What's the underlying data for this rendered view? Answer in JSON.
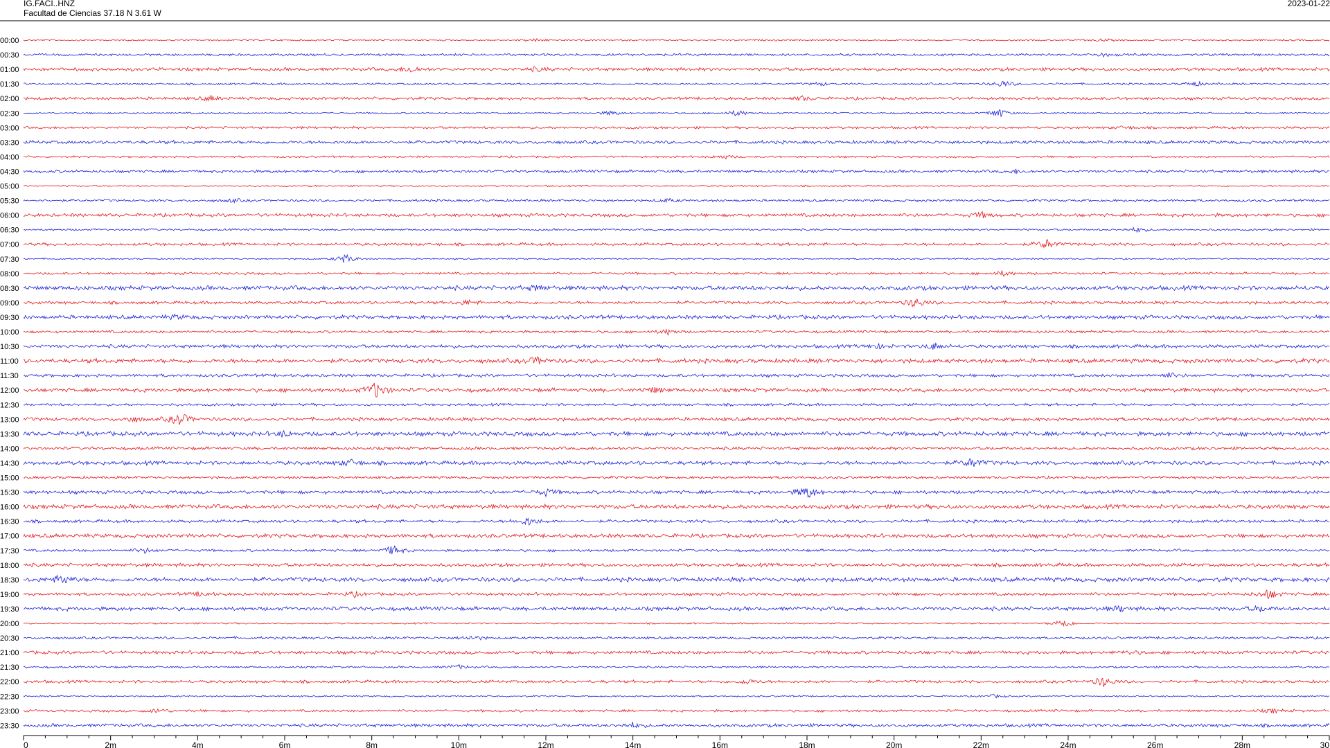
{
  "header": {
    "station": "IG.FACI..HNZ",
    "location": "Facultad de Ciencias  37.18 N 3.61 W",
    "date": "2023-01-22"
  },
  "colors": {
    "trace_a": "#e3161b",
    "trace_b": "#1a1fd6",
    "axis": "#000000"
  },
  "chart_data": {
    "type": "line",
    "title": "IG.FACI..HNZ",
    "subtitle": "Facultad de Ciencias  37.18 N 3.61 W",
    "xlabel": "",
    "ylabel": "",
    "x_unit": "minutes",
    "xlim": [
      0,
      30
    ],
    "grid": false,
    "x_ticks": [
      "0",
      "2m",
      "4m",
      "6m",
      "8m",
      "10m",
      "12m",
      "14m",
      "16m",
      "18m",
      "20m",
      "22m",
      "24m",
      "26m",
      "28m",
      "30"
    ],
    "series": [
      {
        "start": "00:00",
        "color": "red",
        "events": [
          [
            11.8,
            0.8
          ],
          [
            24.8,
            0.8
          ]
        ]
      },
      {
        "start": "00:30",
        "color": "blue",
        "events": [
          [
            24.8,
            1.0
          ]
        ]
      },
      {
        "start": "01:00",
        "color": "red",
        "events": [
          [
            8.9,
            2.0
          ],
          [
            11.8,
            1.0
          ]
        ]
      },
      {
        "start": "01:30",
        "color": "blue",
        "events": [
          [
            18.3,
            1.0
          ],
          [
            22.5,
            2.0
          ],
          [
            26.9,
            1.5
          ]
        ]
      },
      {
        "start": "02:00",
        "color": "red",
        "events": [
          [
            4.3,
            1.5
          ],
          [
            17.9,
            1.2
          ]
        ]
      },
      {
        "start": "02:30",
        "color": "blue",
        "events": [
          [
            13.5,
            1.5
          ],
          [
            16.4,
            2.0
          ],
          [
            22.4,
            3.0
          ]
        ]
      },
      {
        "start": "03:00",
        "color": "red",
        "events": [
          [
            25.3,
            1.0
          ]
        ]
      },
      {
        "start": "03:30",
        "color": "blue",
        "events": []
      },
      {
        "start": "04:00",
        "color": "red",
        "events": [
          [
            16.1,
            1.2
          ]
        ]
      },
      {
        "start": "04:30",
        "color": "blue",
        "events": [
          [
            22.8,
            1.0
          ]
        ]
      },
      {
        "start": "05:00",
        "color": "red",
        "events": []
      },
      {
        "start": "05:30",
        "color": "blue",
        "events": [
          [
            4.8,
            1.0
          ],
          [
            14.8,
            1.0
          ]
        ]
      },
      {
        "start": "06:00",
        "color": "red",
        "events": [
          [
            22.0,
            1.5
          ]
        ]
      },
      {
        "start": "06:30",
        "color": "blue",
        "events": [
          [
            25.6,
            1.5
          ]
        ]
      },
      {
        "start": "07:00",
        "color": "red",
        "events": [
          [
            23.5,
            3.0
          ]
        ]
      },
      {
        "start": "07:30",
        "color": "blue",
        "events": [
          [
            7.4,
            3.0
          ]
        ]
      },
      {
        "start": "08:00",
        "color": "red",
        "events": [
          [
            22.5,
            1.5
          ]
        ]
      },
      {
        "start": "08:30",
        "color": "blue",
        "events": [
          [
            11.8,
            1.5
          ]
        ]
      },
      {
        "start": "09:00",
        "color": "red",
        "events": [
          [
            10.2,
            1.5
          ],
          [
            20.5,
            3.0
          ]
        ]
      },
      {
        "start": "09:30",
        "color": "blue",
        "events": [
          [
            3.5,
            1.0
          ]
        ]
      },
      {
        "start": "10:00",
        "color": "red",
        "events": [
          [
            14.8,
            1.5
          ]
        ]
      },
      {
        "start": "10:30",
        "color": "blue",
        "events": [
          [
            19.6,
            1.5
          ],
          [
            20.9,
            2.0
          ]
        ]
      },
      {
        "start": "11:00",
        "color": "red",
        "events": [
          [
            11.8,
            2.0
          ]
        ]
      },
      {
        "start": "11:30",
        "color": "blue",
        "events": [
          [
            26.3,
            1.5
          ]
        ]
      },
      {
        "start": "12:00",
        "color": "red",
        "events": [
          [
            8.1,
            5.0
          ],
          [
            14.5,
            1.5
          ]
        ]
      },
      {
        "start": "12:30",
        "color": "blue",
        "events": []
      },
      {
        "start": "13:00",
        "color": "red",
        "events": [
          [
            2.5,
            1.5
          ],
          [
            3.6,
            4.0
          ]
        ]
      },
      {
        "start": "13:30",
        "color": "blue",
        "events": [
          [
            6.0,
            1.5
          ]
        ]
      },
      {
        "start": "14:00",
        "color": "red",
        "events": []
      },
      {
        "start": "14:30",
        "color": "blue",
        "events": [
          [
            7.5,
            2.0
          ],
          [
            21.8,
            3.0
          ]
        ]
      },
      {
        "start": "15:00",
        "color": "red",
        "events": []
      },
      {
        "start": "15:30",
        "color": "blue",
        "events": [
          [
            12.0,
            2.0
          ],
          [
            18.0,
            4.0
          ]
        ]
      },
      {
        "start": "16:00",
        "color": "red",
        "events": []
      },
      {
        "start": "16:30",
        "color": "blue",
        "events": [
          [
            11.6,
            2.5
          ]
        ]
      },
      {
        "start": "17:00",
        "color": "red",
        "events": []
      },
      {
        "start": "17:30",
        "color": "blue",
        "events": [
          [
            2.8,
            1.5
          ],
          [
            8.5,
            3.0
          ]
        ]
      },
      {
        "start": "18:00",
        "color": "red",
        "events": []
      },
      {
        "start": "18:30",
        "color": "blue",
        "events": [
          [
            0.9,
            3.0
          ]
        ]
      },
      {
        "start": "19:00",
        "color": "red",
        "events": [
          [
            4.1,
            1.5
          ],
          [
            7.6,
            1.2
          ],
          [
            28.6,
            3.0
          ]
        ]
      },
      {
        "start": "19:30",
        "color": "blue",
        "events": [
          [
            25.2,
            1.5
          ],
          [
            28.4,
            1.5
          ]
        ]
      },
      {
        "start": "20:00",
        "color": "red",
        "events": [
          [
            23.9,
            3.0
          ]
        ]
      },
      {
        "start": "20:30",
        "color": "blue",
        "events": [
          [
            10.3,
            1.5
          ]
        ]
      },
      {
        "start": "21:00",
        "color": "red",
        "events": [
          [
            25.4,
            1.0
          ]
        ]
      },
      {
        "start": "21:30",
        "color": "blue",
        "events": [
          [
            10.0,
            1.2
          ]
        ]
      },
      {
        "start": "22:00",
        "color": "red",
        "events": [
          [
            16.6,
            1.5
          ],
          [
            24.8,
            3.0
          ]
        ]
      },
      {
        "start": "22:30",
        "color": "blue",
        "events": [
          [
            22.3,
            1.0
          ]
        ]
      },
      {
        "start": "23:00",
        "color": "red",
        "events": [
          [
            3.1,
            1.5
          ],
          [
            28.7,
            1.2
          ]
        ]
      },
      {
        "start": "23:30",
        "color": "blue",
        "events": [
          [
            14.0,
            1.5
          ]
        ]
      }
    ]
  }
}
